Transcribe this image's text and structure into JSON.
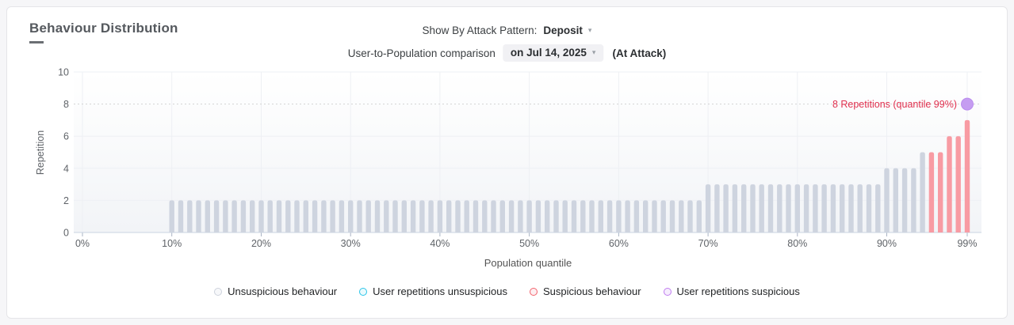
{
  "card": {
    "title": "Behaviour Distribution"
  },
  "icons": {
    "caret": "▾"
  },
  "controls": {
    "attack_pattern_label": "Show By Attack Pattern:",
    "attack_pattern_value": "Deposit",
    "comparison_label": "User-to-Population comparison",
    "comparison_date_value": "on Jul 14, 2025",
    "comparison_suffix": "(At Attack)"
  },
  "chart_data": {
    "type": "bar",
    "title": "Behaviour Distribution",
    "xlabel": "Population quantile",
    "ylabel": "Repetition",
    "ylim": [
      0,
      10
    ],
    "y_ticks": [
      0,
      2,
      4,
      6,
      8,
      10
    ],
    "x_ticks": [
      {
        "pos": 0,
        "label": "0%"
      },
      {
        "pos": 10,
        "label": "10%"
      },
      {
        "pos": 20,
        "label": "20%"
      },
      {
        "pos": 30,
        "label": "30%"
      },
      {
        "pos": 40,
        "label": "40%"
      },
      {
        "pos": 50,
        "label": "50%"
      },
      {
        "pos": 60,
        "label": "60%"
      },
      {
        "pos": 70,
        "label": "70%"
      },
      {
        "pos": 80,
        "label": "80%"
      },
      {
        "pos": 90,
        "label": "90%"
      },
      {
        "pos": 99,
        "label": "99%"
      }
    ],
    "quantile_values": [
      0,
      0,
      0,
      0,
      0,
      0,
      0,
      0,
      0,
      0,
      2,
      2,
      2,
      2,
      2,
      2,
      2,
      2,
      2,
      2,
      2,
      2,
      2,
      2,
      2,
      2,
      2,
      2,
      2,
      2,
      2,
      2,
      2,
      2,
      2,
      2,
      2,
      2,
      2,
      2,
      2,
      2,
      2,
      2,
      2,
      2,
      2,
      2,
      2,
      2,
      2,
      2,
      2,
      2,
      2,
      2,
      2,
      2,
      2,
      2,
      2,
      2,
      2,
      2,
      2,
      2,
      2,
      2,
      2,
      2,
      3,
      3,
      3,
      3,
      3,
      3,
      3,
      3,
      3,
      3,
      3,
      3,
      3,
      3,
      3,
      3,
      3,
      3,
      3,
      3,
      4,
      4,
      4,
      4,
      5,
      5,
      5,
      6,
      6,
      7
    ],
    "suspicious_start_quantile": 95,
    "bar_colors": {
      "unsuspicious": "#ced4df",
      "suspicious": "#f89ba3"
    },
    "grid": true,
    "threshold_line": {
      "value": 8,
      "style": "dotted",
      "color": "#d2d2d2"
    },
    "user_point": {
      "quantile": 99,
      "value": 8,
      "label": "8 Repetitions (quantile 99%)",
      "fill": "#c59df1",
      "stroke": "#b98bee",
      "label_color": "#e0304e"
    },
    "legend_position": "bottom",
    "legend": [
      {
        "label": "Unsuspicious behaviour",
        "stroke": "#cdd2dc",
        "fill": "#f7f8fa"
      },
      {
        "label": "User repetitions unsuspicious",
        "stroke": "#2bc5e8",
        "fill": "#eafafd"
      },
      {
        "label": "Suspicious behaviour",
        "stroke": "#f2626c",
        "fill": "#fdeef0"
      },
      {
        "label": "User repetitions suspicious",
        "stroke": "#c07cf0",
        "fill": "#f6edfd"
      }
    ]
  }
}
